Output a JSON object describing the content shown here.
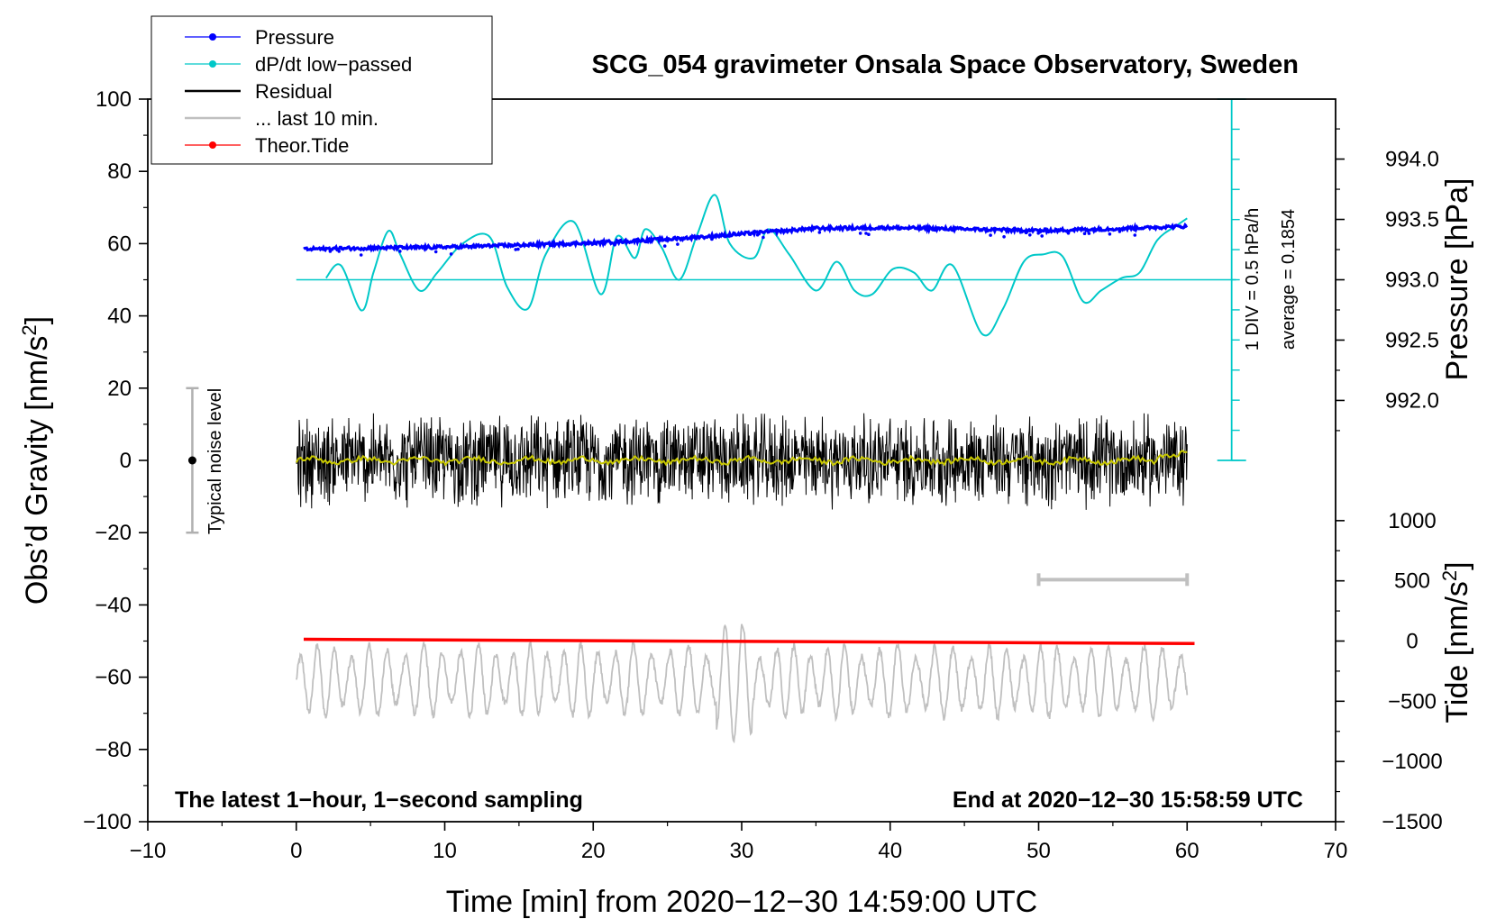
{
  "chart_data": {
    "type": "line",
    "title": "SCG_054 gravimeter Onsala Space Observatory, Sweden",
    "xlabel": "Time [min] from 2020−12−30 14:59:00 UTC",
    "ylabel_left": "Obs’d Gravity [nm/s²]",
    "ylabel_left_base": "Obs’d Gravity [nm/s",
    "ylabel_left_sup": "2",
    "ylabel_left_end": "]",
    "ylabel_pressure": "Pressure [hPa]",
    "ylabel_tide_base": "Tide [nm/s",
    "ylabel_tide_sup": "2",
    "ylabel_tide_end": "]",
    "xlim": [
      -10,
      70
    ],
    "ylim": [
      -100,
      100
    ],
    "x_ticks": [
      "−10",
      "0",
      "10",
      "20",
      "30",
      "40",
      "50",
      "60",
      "70"
    ],
    "x_tick_values": [
      -10,
      0,
      10,
      20,
      30,
      40,
      50,
      60,
      70
    ],
    "y_ticks": [
      "100",
      "80",
      "60",
      "40",
      "20",
      "0",
      "−20",
      "−40",
      "−60",
      "−80",
      "−100"
    ],
    "y_tick_values": [
      100,
      80,
      60,
      40,
      20,
      0,
      -20,
      -40,
      -60,
      -80,
      -100
    ],
    "pressure_ticks": [
      "994.0",
      "993.5",
      "993.0",
      "992.5",
      "992.0"
    ],
    "pressure_tick_values": [
      994.0,
      993.5,
      993.0,
      992.5,
      992.0
    ],
    "pressure_axis": {
      "hpa_at_obs50": 993.0,
      "obs_per_hpa": 33.4
    },
    "tide_ticks": [
      "1000",
      "500",
      "0",
      "−500",
      "−1000",
      "−1500"
    ],
    "tide_tick_values": [
      1000,
      500,
      0,
      -500,
      -1000,
      -1500
    ],
    "tide_axis": {
      "obs_at_tide0": -50,
      "obs_per_1000": 33.33
    },
    "legend": [
      {
        "label": "Pressure",
        "color": "#0000ff",
        "marker": "dot"
      },
      {
        "label": "dP/dt low−passed",
        "color": "#00c8c8",
        "marker": "dot"
      },
      {
        "label": "Residual",
        "color": "#000000",
        "marker": "line"
      },
      {
        "label": "... last 10 min.",
        "color": "#c0c0c0",
        "marker": "line"
      },
      {
        "label": "Theor.Tide",
        "color": "#ff0000",
        "marker": "dot"
      }
    ],
    "legend_position": "top-left",
    "annotations": {
      "noise_label": "Typical noise level",
      "noise_range": [
        -20,
        20
      ],
      "noise_x": -7,
      "dpdt_scale": "1 DIV = 0.5 hPa/h",
      "average": "average = 0.1854",
      "footer_left": "The latest 1−hour, 1−second sampling",
      "footer_right": "End at 2020−12−30 15:58:59 UTC",
      "last10_range": [
        50,
        60
      ],
      "last10_y": -33,
      "dpdt_axis_x": 63,
      "dpdt_axis_range": [
        0,
        100
      ],
      "dpdt_zero": 50
    },
    "colors": {
      "pressure": "#0000ff",
      "dpdt": "#00c8c8",
      "residual": "#000000",
      "smoothed": "#c8c800",
      "last10": "#c0c0c0",
      "tide": "#ff0000"
    },
    "series": [
      {
        "name": "Pressure",
        "x": [
          0.5,
          5,
          10,
          15,
          20,
          25,
          30,
          35,
          40,
          45,
          50,
          55,
          60
        ],
        "values": [
          58.5,
          58.8,
          59.0,
          59.6,
          60.2,
          61.2,
          62.7,
          64.2,
          64.4,
          64.0,
          63.6,
          64.1,
          64.8
        ]
      },
      {
        "name": "dP/dt low−passed",
        "x": [
          2,
          3,
          4.4,
          5.2,
          6.2,
          7,
          8.3,
          9.5,
          11.2,
          13,
          14.2,
          15.6,
          16.8,
          18.7,
          20.5,
          21.6,
          22.8,
          23.5,
          24.6,
          25.8,
          27,
          28.2,
          29.2,
          30.8,
          31.8,
          33.2,
          35,
          36.4,
          37.6,
          38.8,
          40.2,
          41.6,
          42.8,
          44.2,
          46.2,
          47.6,
          49,
          50.3,
          51.6,
          53,
          54.2,
          55.6,
          56.8,
          58,
          59.3,
          60
        ],
        "values": [
          50.5,
          54,
          41.5,
          52,
          63.5,
          57,
          47,
          52,
          60,
          62,
          48,
          42,
          57,
          66,
          46,
          62,
          56,
          64,
          59,
          50,
          62.5,
          73.5,
          60,
          56,
          64,
          57,
          47,
          55,
          47,
          46,
          53,
          52,
          47,
          54,
          35,
          42,
          55,
          57,
          56.5,
          44,
          47,
          50.5,
          52,
          61,
          65,
          67
        ]
      },
      {
        "name": "Residual",
        "x_range": [
          0,
          60
        ],
        "amplitude": 14
      },
      {
        "name": "... last 10 min.",
        "x_range": [
          0,
          60
        ],
        "center": -61,
        "amplitude": 10
      },
      {
        "name": "Theor.Tide",
        "x": [
          0.5,
          60.5
        ],
        "values": [
          -49.5,
          -50.7
        ]
      }
    ]
  }
}
